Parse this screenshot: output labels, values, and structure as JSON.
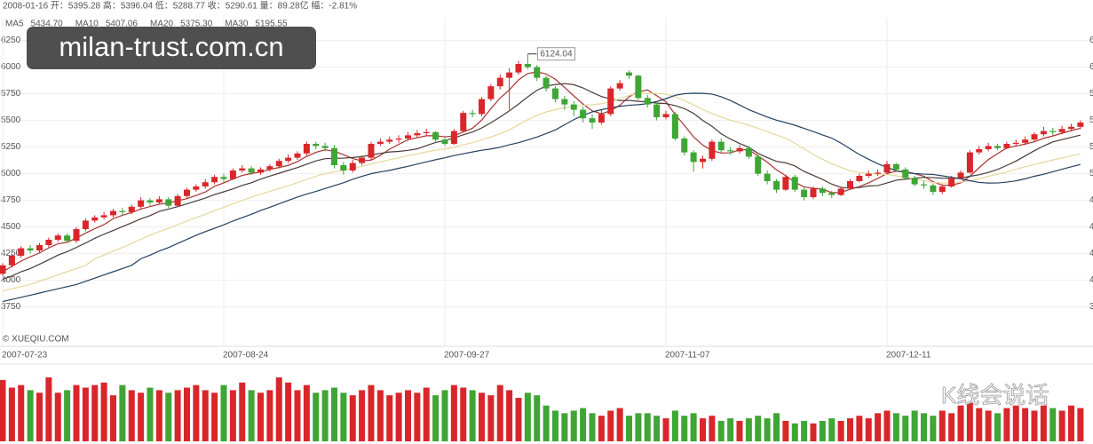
{
  "chart_data": {
    "type": "candlestick",
    "info": "2008-01-16 开：5395.28 高：5396.04 低：5288.77 收：5290.61 量：89.28亿 幅：-2.81%",
    "watermark": "milan-trust.com.cn",
    "copyright": "© XUEQIU.COM",
    "brand": "K线会说话",
    "up_color": "#d9262a",
    "down_color": "#3fa535",
    "grid": true,
    "ylim": [
      3480,
      6380
    ],
    "yticks": [
      3750,
      4000,
      4250,
      4500,
      4750,
      5000,
      5250,
      5500,
      5750,
      6000,
      6250
    ],
    "categories": [
      "2007-07-23",
      null,
      null,
      null,
      null,
      null,
      null,
      null,
      null,
      null,
      null,
      null,
      null,
      null,
      null,
      null,
      null,
      null,
      null,
      null,
      null,
      null,
      null,
      null,
      "2007-08-24",
      null,
      null,
      null,
      null,
      null,
      null,
      null,
      null,
      null,
      null,
      null,
      null,
      null,
      null,
      null,
      null,
      null,
      null,
      null,
      null,
      null,
      null,
      null,
      "2007-09-27",
      null,
      null,
      null,
      null,
      null,
      null,
      null,
      null,
      null,
      null,
      null,
      null,
      null,
      null,
      null,
      null,
      null,
      null,
      null,
      null,
      null,
      null,
      null,
      "2007-11-07",
      null,
      null,
      null,
      null,
      null,
      null,
      null,
      null,
      null,
      null,
      null,
      null,
      null,
      null,
      null,
      null,
      null,
      null,
      null,
      null,
      null,
      null,
      null,
      "2007-12-11",
      null,
      null,
      null,
      null,
      null,
      null,
      null,
      null,
      null,
      null,
      null,
      null,
      null,
      null,
      null,
      null,
      null,
      null,
      null,
      null,
      null
    ],
    "open": [
      4060,
      4140,
      4230,
      4300,
      4280,
      4330,
      4380,
      4420,
      4370,
      4480,
      4560,
      4590,
      4610,
      4650,
      4640,
      4690,
      4750,
      4730,
      4760,
      4700,
      4790,
      4850,
      4880,
      4920,
      4970,
      4950,
      5030,
      5050,
      5010,
      5040,
      5070,
      5120,
      5150,
      5190,
      5280,
      5260,
      5240,
      5080,
      5030,
      5100,
      5150,
      5280,
      5300,
      5320,
      5330,
      5360,
      5380,
      5390,
      5320,
      5280,
      5400,
      5570,
      5560,
      5700,
      5820,
      5900,
      5950,
      6030,
      6000,
      5900,
      5800,
      5700,
      5650,
      5600,
      5520,
      5480,
      5560,
      5800,
      5950,
      5920,
      5710,
      5650,
      5530,
      5560,
      5330,
      5200,
      5110,
      5140,
      5300,
      5220,
      5210,
      5240,
      5160,
      5000,
      4930,
      4850,
      4970,
      4850,
      4780,
      4860,
      4820,
      4800,
      4860,
      4930,
      4980,
      5000,
      5010,
      5090,
      5040,
      4960,
      4900,
      4890,
      4830,
      4880,
      4960,
      5010,
      5200,
      5230,
      5260,
      5240,
      5280,
      5290,
      5320,
      5370,
      5400,
      5390,
      5420,
      5440
    ],
    "high": [
      4160,
      4250,
      4320,
      4330,
      4350,
      4400,
      4440,
      4440,
      4500,
      4580,
      4610,
      4640,
      4670,
      4680,
      4710,
      4780,
      4770,
      4790,
      4780,
      4810,
      4870,
      4900,
      4950,
      4990,
      5000,
      5050,
      5080,
      5070,
      5060,
      5090,
      5140,
      5180,
      5210,
      5300,
      5300,
      5290,
      5270,
      5110,
      5130,
      5170,
      5300,
      5330,
      5350,
      5360,
      5390,
      5410,
      5420,
      5400,
      5340,
      5420,
      5590,
      5600,
      5720,
      5840,
      5930,
      5990,
      6060,
      6124.04,
      6020,
      5920,
      5820,
      5730,
      5680,
      5630,
      5560,
      5600,
      5820,
      5880,
      5970,
      5930,
      5740,
      5670,
      5590,
      5580,
      5350,
      5220,
      5170,
      5320,
      5330,
      5250,
      5270,
      5260,
      5180,
      5030,
      4950,
      4990,
      4990,
      4870,
      4880,
      4880,
      4840,
      4880,
      4950,
      5000,
      5030,
      5040,
      5120,
      5100,
      5060,
      4980,
      4930,
      4910,
      4900,
      4980,
      5030,
      5220,
      5260,
      5290,
      5280,
      5300,
      5320,
      5350,
      5390,
      5440,
      5430,
      5450,
      5470,
      5500
    ],
    "low": [
      4040,
      4120,
      4210,
      4250,
      4260,
      4310,
      4360,
      4350,
      4350,
      4460,
      4540,
      4570,
      4590,
      4610,
      4620,
      4670,
      4700,
      4710,
      4680,
      4690,
      4770,
      4830,
      4860,
      4900,
      4920,
      4940,
      5010,
      4990,
      4990,
      5020,
      5050,
      5100,
      5130,
      5170,
      5230,
      5210,
      5050,
      4990,
      5010,
      5080,
      5130,
      5260,
      5280,
      5290,
      5310,
      5340,
      5350,
      5300,
      5260,
      5270,
      5390,
      5530,
      5540,
      5680,
      5790,
      5600,
      5930,
      5980,
      5870,
      5770,
      5670,
      5600,
      5540,
      5480,
      5420,
      5460,
      5540,
      5780,
      5890,
      5690,
      5620,
      5500,
      5510,
      5310,
      5170,
      5020,
      5050,
      5120,
      5200,
      5180,
      5190,
      5140,
      4980,
      4900,
      4820,
      4840,
      4830,
      4750,
      4760,
      4790,
      4770,
      4790,
      4850,
      4920,
      4960,
      4980,
      5000,
      5020,
      4940,
      4880,
      4860,
      4800,
      4810,
      4870,
      4950,
      5000,
      5180,
      5210,
      5220,
      5230,
      5260,
      5270,
      5300,
      5350,
      5360,
      5370,
      5400,
      5420
    ],
    "close": [
      4140,
      4230,
      4300,
      4280,
      4330,
      4380,
      4420,
      4370,
      4480,
      4560,
      4590,
      4610,
      4650,
      4640,
      4690,
      4750,
      4730,
      4760,
      4700,
      4790,
      4850,
      4880,
      4920,
      4970,
      4950,
      5030,
      5050,
      5010,
      5040,
      5070,
      5120,
      5150,
      5190,
      5280,
      5260,
      5240,
      5080,
      5030,
      5100,
      5150,
      5280,
      5300,
      5320,
      5330,
      5360,
      5380,
      5390,
      5320,
      5280,
      5400,
      5570,
      5560,
      5700,
      5820,
      5900,
      5950,
      6030,
      6000,
      5900,
      5800,
      5700,
      5650,
      5600,
      5520,
      5480,
      5560,
      5800,
      5850,
      5920,
      5710,
      5650,
      5530,
      5560,
      5330,
      5200,
      5110,
      5140,
      5300,
      5220,
      5210,
      5240,
      5160,
      5000,
      4930,
      4850,
      4970,
      4850,
      4780,
      4860,
      4820,
      4800,
      4860,
      4930,
      4980,
      5000,
      5010,
      5090,
      5040,
      4960,
      4900,
      4890,
      4830,
      4880,
      4960,
      5010,
      5200,
      5230,
      5260,
      5240,
      5280,
      5290,
      5320,
      5370,
      5400,
      5390,
      5420,
      5440,
      5480
    ],
    "volume": [
      120,
      105,
      110,
      100,
      95,
      125,
      95,
      100,
      110,
      105,
      110,
      115,
      90,
      110,
      100,
      95,
      105,
      100,
      95,
      100,
      105,
      110,
      100,
      95,
      110,
      100,
      115,
      100,
      95,
      100,
      125,
      115,
      100,
      110,
      95,
      100,
      105,
      95,
      90,
      100,
      110,
      100,
      90,
      95,
      100,
      95,
      105,
      90,
      100,
      110,
      105,
      100,
      95,
      90,
      110,
      100,
      85,
      95,
      90,
      70,
      60,
      55,
      60,
      65,
      55,
      50,
      60,
      65,
      50,
      55,
      55,
      50,
      45,
      60,
      50,
      55,
      45,
      50,
      40,
      45,
      40,
      45,
      50,
      45,
      55,
      40,
      35,
      40,
      35,
      40,
      45,
      40,
      45,
      50,
      45,
      55,
      60,
      55,
      50,
      60,
      55,
      50,
      60,
      55,
      70,
      75,
      65,
      60,
      55,
      65,
      70,
      65,
      60,
      70,
      65,
      60,
      70,
      65
    ],
    "series": [
      {
        "name": "MA5",
        "legend_value": "5434.70",
        "color": "#a83232",
        "values": [
          4080,
          4130,
          4180,
          4220,
          4256,
          4304,
          4342,
          4356,
          4396,
          4442,
          4484,
          4522,
          4578,
          4610,
          4636,
          4668,
          4692,
          4714,
          4726,
          4746,
          4766,
          4796,
          4828,
          4882,
          4914,
          4950,
          4984,
          5002,
          5016,
          5040,
          5058,
          5078,
          5114,
          5162,
          5200,
          5224,
          5210,
          5178,
          5142,
          5120,
          5128,
          5172,
          5230,
          5276,
          5318,
          5338,
          5356,
          5356,
          5346,
          5354,
          5392,
          5426,
          5502,
          5610,
          5710,
          5786,
          5880,
          5940,
          5956,
          5936,
          5886,
          5810,
          5730,
          5654,
          5590,
          5562,
          5592,
          5642,
          5722,
          5768,
          5786,
          5732,
          5674,
          5556,
          5454,
          5346,
          5268,
          5216,
          5194,
          5196,
          5222,
          5226,
          5166,
          5108,
          5036,
          4982,
          4920,
          4876,
          4862,
          4856,
          4822,
          4824,
          4854,
          4878,
          4914,
          4956,
          5002,
          5024,
          5020,
          5000,
          4976,
          4924,
          4892,
          4892,
          4914,
          4976,
          5056,
          5132,
          5188,
          5242,
          5260,
          5278,
          5300,
          5332,
          5354,
          5380,
          5404,
          5426
        ]
      },
      {
        "name": "MA10",
        "legend_value": "5407.06",
        "color": "#4a3a3a",
        "values": [
          4010,
          4040,
          4080,
          4110,
          4150,
          4192,
          4236,
          4268,
          4308,
          4349,
          4394,
          4432,
          4467,
          4503,
          4539,
          4576,
          4607,
          4646,
          4668,
          4691,
          4717,
          4744,
          4771,
          4804,
          4830,
          4858,
          4890,
          4915,
          4949,
          4977,
          5004,
          5031,
          5058,
          5089,
          5120,
          5141,
          5144,
          5146,
          5152,
          5160,
          5176,
          5191,
          5204,
          5209,
          5219,
          5233,
          5264,
          5293,
          5311,
          5336,
          5365,
          5391,
          5429,
          5478,
          5532,
          5589,
          5653,
          5721,
          5783,
          5823,
          5836,
          5845,
          5835,
          5805,
          5763,
          5724,
          5701,
          5686,
          5688,
          5679,
          5674,
          5662,
          5658,
          5639,
          5611,
          5566,
          5500,
          5445,
          5375,
          5325,
          5284,
          5247,
          5191,
          5151,
          5116,
          5102,
          5073,
          5021,
          4985,
          4946,
          4902,
          4872,
          4865,
          4870,
          4885,
          4889,
          4913,
          4939,
          4949,
          4957,
          4966,
          4963,
          4958,
          4956,
          4957,
          4976,
          4990,
          5012,
          5040,
          5078,
          5118,
          5167,
          5216,
          5260,
          5298,
          5320,
          5341,
          5363
        ]
      },
      {
        "name": "MA20",
        "legend_value": "5375.30",
        "color": "#e8d79c",
        "values": [
          3900,
          3920,
          3940,
          3960,
          3990,
          4020,
          4050,
          4080,
          4110,
          4140,
          4202,
          4236,
          4274,
          4307,
          4345,
          4384,
          4422,
          4457,
          4488,
          4520,
          4556,
          4588,
          4619,
          4654,
          4685,
          4717,
          4749,
          4781,
          4809,
          4834,
          4861,
          4888,
          4915,
          4947,
          4975,
          5000,
          5017,
          5031,
          5051,
          5069,
          5090,
          5111,
          5131,
          5149,
          5170,
          5187,
          5204,
          5220,
          5232,
          5248,
          5271,
          5291,
          5317,
          5344,
          5376,
          5411,
          5459,
          5507,
          5547,
          5580,
          5601,
          5618,
          5632,
          5642,
          5648,
          5657,
          5677,
          5704,
          5736,
          5751,
          5755,
          5754,
          5747,
          5722,
          5687,
          5645,
          5601,
          5566,
          5532,
          5502,
          5479,
          5455,
          5425,
          5395,
          5364,
          5334,
          5287,
          5233,
          5180,
          5136,
          5093,
          5060,
          5028,
          5011,
          5001,
          4996,
          4993,
          4980,
          4967,
          4952,
          4934,
          4918,
          4912,
          4913,
          4921,
          4933,
          4952,
          4976,
          4995,
          5018,
          5042,
          5065,
          5087,
          5108,
          5128,
          5148,
          5166,
          5188
        ]
      },
      {
        "name": "MA30",
        "legend_value": "5195.55",
        "color": "#23405f",
        "values": [
          3800,
          3820,
          3840,
          3860,
          3880,
          3900,
          3920,
          3940,
          3960,
          3990,
          4020,
          4050,
          4080,
          4110,
          4140,
          4202,
          4236,
          4274,
          4307,
          4345,
          4384,
          4422,
          4457,
          4488,
          4520,
          4556,
          4588,
          4619,
          4654,
          4685,
          4717,
          4749,
          4781,
          4809,
          4834,
          4861,
          4888,
          4915,
          4947,
          4975,
          5000,
          5017,
          5031,
          5051,
          5069,
          5090,
          5111,
          5131,
          5149,
          5170,
          5187,
          5204,
          5220,
          5232,
          5248,
          5271,
          5291,
          5317,
          5344,
          5376,
          5411,
          5459,
          5507,
          5547,
          5580,
          5601,
          5618,
          5632,
          5642,
          5648,
          5657,
          5677,
          5704,
          5736,
          5751,
          5755,
          5754,
          5747,
          5722,
          5687,
          5645,
          5601,
          5566,
          5532,
          5502,
          5479,
          5455,
          5425,
          5395,
          5364,
          5334,
          5287,
          5233,
          5180,
          5136,
          5093,
          5060,
          5028,
          5011,
          5001,
          4996,
          4993,
          4980,
          4967,
          4952,
          4934,
          4918,
          4912,
          4913,
          4921,
          4933,
          4952,
          4976,
          4995,
          5018,
          5042,
          5065,
          5087
        ]
      }
    ]
  }
}
